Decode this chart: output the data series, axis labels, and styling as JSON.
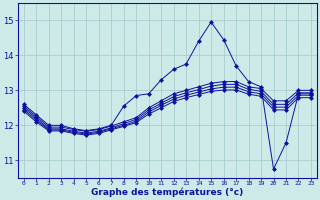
{
  "title": "Graphe des températures (°c)",
  "xlim": [
    -0.5,
    23.5
  ],
  "ylim": [
    10.5,
    15.5
  ],
  "yticks": [
    11,
    12,
    13,
    14,
    15
  ],
  "xticks": [
    0,
    1,
    2,
    3,
    4,
    5,
    6,
    7,
    8,
    9,
    10,
    11,
    12,
    13,
    14,
    15,
    16,
    17,
    18,
    19,
    20,
    21,
    22,
    23
  ],
  "background_color": "#ceeae8",
  "grid_color": "#a0c8c8",
  "line_color": "#1010a0",
  "hours": [
    0,
    1,
    2,
    3,
    4,
    5,
    6,
    7,
    8,
    9,
    10,
    11,
    12,
    13,
    14,
    15,
    16,
    17,
    18,
    19,
    20,
    21,
    22,
    23
  ],
  "series": [
    [
      12.6,
      12.3,
      12.0,
      12.0,
      11.9,
      11.85,
      11.9,
      12.0,
      12.55,
      12.85,
      12.9,
      13.3,
      13.6,
      13.75,
      14.4,
      14.95,
      14.45,
      13.7,
      13.25,
      13.1,
      10.75,
      11.5,
      12.9,
      12.9
    ],
    [
      12.55,
      12.25,
      11.95,
      11.95,
      11.88,
      11.83,
      11.88,
      11.98,
      12.1,
      12.22,
      12.5,
      12.7,
      12.9,
      13.0,
      13.1,
      13.2,
      13.25,
      13.25,
      13.1,
      13.05,
      12.7,
      12.7,
      13.0,
      13.0
    ],
    [
      12.5,
      12.2,
      11.9,
      11.9,
      11.83,
      11.78,
      11.83,
      11.93,
      12.05,
      12.17,
      12.44,
      12.63,
      12.82,
      12.93,
      13.02,
      13.12,
      13.17,
      13.17,
      13.03,
      12.97,
      12.6,
      12.6,
      12.93,
      12.93
    ],
    [
      12.45,
      12.15,
      11.87,
      11.87,
      11.8,
      11.75,
      11.8,
      11.9,
      12.0,
      12.12,
      12.38,
      12.57,
      12.75,
      12.86,
      12.95,
      13.04,
      13.09,
      13.09,
      12.96,
      12.9,
      12.52,
      12.52,
      12.86,
      12.86
    ],
    [
      12.4,
      12.1,
      11.84,
      11.84,
      11.77,
      11.72,
      11.77,
      11.87,
      11.97,
      12.08,
      12.32,
      12.5,
      12.68,
      12.79,
      12.88,
      12.97,
      13.01,
      13.01,
      12.89,
      12.83,
      12.44,
      12.44,
      12.79,
      12.79
    ]
  ]
}
